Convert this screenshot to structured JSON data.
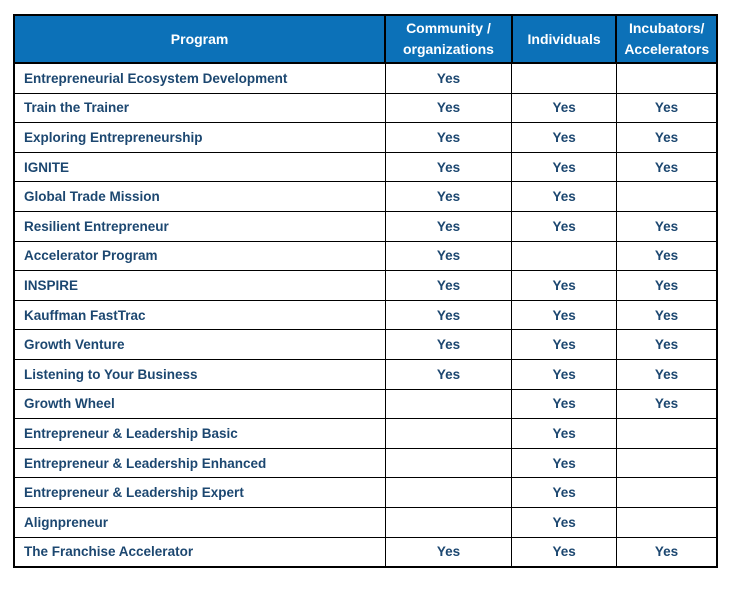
{
  "table": {
    "columns": [
      {
        "label": "Program"
      },
      {
        "label": "Community /\norganizations"
      },
      {
        "label": "Individuals"
      },
      {
        "label": "Incubators/\nAccelerators"
      }
    ],
    "rows": [
      {
        "program": "Entrepreneurial Ecosystem Development",
        "values": [
          "Yes",
          "",
          ""
        ]
      },
      {
        "program": "Train the Trainer",
        "values": [
          "Yes",
          "Yes",
          "Yes"
        ]
      },
      {
        "program": "Exploring Entrepreneurship",
        "values": [
          "Yes",
          "Yes",
          "Yes"
        ]
      },
      {
        "program": "IGNITE",
        "values": [
          "Yes",
          "Yes",
          "Yes"
        ]
      },
      {
        "program": "Global Trade Mission",
        "values": [
          "Yes",
          "Yes",
          ""
        ]
      },
      {
        "program": "Resilient Entrepreneur",
        "values": [
          "Yes",
          "Yes",
          "Yes"
        ]
      },
      {
        "program": "Accelerator Program",
        "values": [
          "Yes",
          "",
          "Yes"
        ]
      },
      {
        "program": "INSPIRE",
        "values": [
          "Yes",
          "Yes",
          "Yes"
        ]
      },
      {
        "program": "Kauffman FastTrac",
        "values": [
          "Yes",
          "Yes",
          "Yes"
        ]
      },
      {
        "program": "Growth Venture",
        "values": [
          "Yes",
          "Yes",
          "Yes"
        ]
      },
      {
        "program": "Listening to Your Business",
        "values": [
          "Yes",
          "Yes",
          "Yes"
        ]
      },
      {
        "program": "Growth Wheel",
        "values": [
          "",
          "Yes",
          "Yes"
        ]
      },
      {
        "program": "Entrepreneur & Leadership Basic",
        "values": [
          "",
          "Yes",
          ""
        ]
      },
      {
        "program": "Entrepreneur & Leadership Enhanced",
        "values": [
          "",
          "Yes",
          ""
        ]
      },
      {
        "program": "Entrepreneur & Leadership Expert",
        "values": [
          "",
          "Yes",
          ""
        ]
      },
      {
        "program": "Alignpreneur",
        "values": [
          "",
          "Yes",
          ""
        ]
      },
      {
        "program": "The Franchise Accelerator",
        "values": [
          "Yes",
          "Yes",
          "Yes"
        ]
      }
    ]
  },
  "colors": {
    "header_bg": "#0c71b8",
    "header_text": "#ffffff",
    "body_text": "#1c4770",
    "border": "#000000"
  }
}
